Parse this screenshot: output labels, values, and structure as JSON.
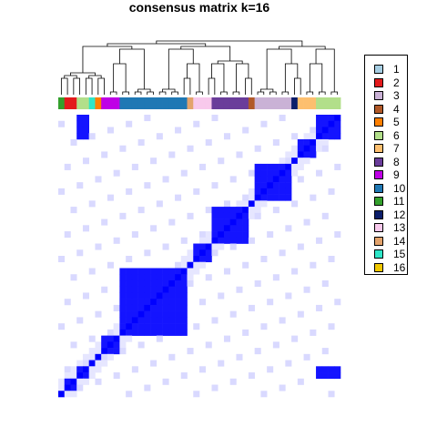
{
  "chart_data": {
    "type": "heatmap",
    "title": "consensus matrix k=16",
    "value_range": [
      0,
      1
    ],
    "low_color": "#ffffff",
    "high_color": "#0000ff",
    "row_order_classes": [
      11,
      2,
      2,
      6,
      6,
      15,
      5,
      9,
      9,
      9,
      10,
      10,
      10,
      10,
      10,
      10,
      10,
      10,
      10,
      10,
      10,
      14,
      13,
      13,
      13,
      8,
      8,
      8,
      8,
      8,
      8,
      4,
      3,
      3,
      3,
      3,
      3,
      3,
      12,
      7,
      7,
      7,
      6,
      6,
      6,
      6
    ],
    "legend": [
      {
        "label": "1",
        "color": "#a6cee3"
      },
      {
        "label": "2",
        "color": "#e31a1c"
      },
      {
        "label": "3",
        "color": "#cab2d6"
      },
      {
        "label": "4",
        "color": "#b15928"
      },
      {
        "label": "5",
        "color": "#ff7f00"
      },
      {
        "label": "6",
        "color": "#b2df8a"
      },
      {
        "label": "7",
        "color": "#fdbf6f"
      },
      {
        "label": "8",
        "color": "#6a3d9a"
      },
      {
        "label": "9",
        "color": "#bf00e6"
      },
      {
        "label": "10",
        "color": "#1f78b4"
      },
      {
        "label": "11",
        "color": "#33a02c"
      },
      {
        "label": "12",
        "color": "#0b1e6b"
      },
      {
        "label": "13",
        "color": "#f8c9ec"
      },
      {
        "label": "14",
        "color": "#e3a36c"
      },
      {
        "label": "15",
        "color": "#2ee6c8"
      },
      {
        "label": "16",
        "color": "#f0c800"
      }
    ]
  }
}
